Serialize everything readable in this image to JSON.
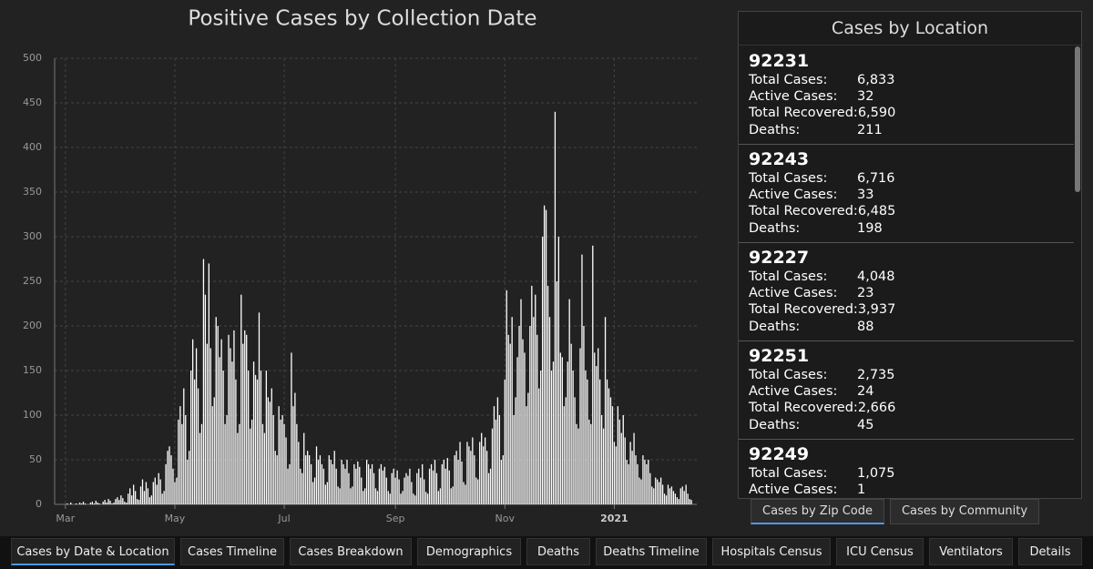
{
  "chart_data": {
    "type": "bar",
    "title": "Positive Cases by Collection Date",
    "color": "#ffffff",
    "grid": true,
    "xlim": [
      -6,
      352
    ],
    "xticks": [
      {
        "value": 0,
        "label": "Mar"
      },
      {
        "value": 61,
        "label": "May"
      },
      {
        "value": 122,
        "label": "Jul"
      },
      {
        "value": 184,
        "label": "Sep"
      },
      {
        "value": 245,
        "label": "Nov"
      },
      {
        "value": 306,
        "label": "2021"
      }
    ],
    "ylim": [
      0,
      500
    ],
    "yticks": [
      0,
      50,
      100,
      150,
      200,
      250,
      300,
      350,
      400,
      450,
      500
    ],
    "values": [
      0,
      1,
      0,
      2,
      0,
      0,
      1,
      0,
      2,
      1,
      3,
      1,
      0,
      0,
      2,
      3,
      1,
      4,
      2,
      1,
      0,
      3,
      5,
      2,
      6,
      4,
      1,
      2,
      6,
      8,
      5,
      10,
      7,
      3,
      2,
      12,
      18,
      10,
      22,
      15,
      6,
      5,
      20,
      28,
      15,
      25,
      18,
      8,
      10,
      25,
      30,
      22,
      35,
      28,
      12,
      15,
      45,
      60,
      65,
      55,
      40,
      25,
      30,
      95,
      110,
      90,
      130,
      100,
      50,
      60,
      150,
      185,
      140,
      175,
      130,
      80,
      90,
      275,
      235,
      180,
      270,
      175,
      110,
      120,
      210,
      200,
      165,
      185,
      150,
      90,
      100,
      190,
      175,
      160,
      195,
      140,
      80,
      90,
      235,
      180,
      195,
      190,
      150,
      85,
      95,
      160,
      145,
      140,
      215,
      150,
      90,
      80,
      150,
      120,
      115,
      130,
      100,
      60,
      55,
      110,
      95,
      100,
      90,
      75,
      40,
      45,
      170,
      110,
      125,
      90,
      70,
      40,
      35,
      80,
      55,
      60,
      55,
      45,
      25,
      30,
      65,
      50,
      55,
      45,
      40,
      22,
      25,
      55,
      50,
      45,
      60,
      40,
      20,
      18,
      50,
      45,
      40,
      50,
      35,
      18,
      20,
      45,
      40,
      48,
      42,
      30,
      15,
      18,
      50,
      45,
      40,
      45,
      35,
      18,
      15,
      40,
      45,
      38,
      42,
      30,
      15,
      12,
      35,
      40,
      30,
      38,
      28,
      12,
      15,
      30,
      35,
      32,
      40,
      25,
      12,
      10,
      35,
      40,
      30,
      45,
      28,
      14,
      12,
      40,
      45,
      38,
      50,
      35,
      15,
      18,
      45,
      50,
      40,
      52,
      38,
      18,
      20,
      55,
      60,
      50,
      70,
      48,
      25,
      22,
      70,
      65,
      60,
      75,
      55,
      30,
      28,
      70,
      80,
      65,
      75,
      60,
      35,
      40,
      85,
      110,
      95,
      120,
      100,
      50,
      55,
      140,
      240,
      190,
      180,
      210,
      100,
      120,
      165,
      200,
      230,
      185,
      170,
      110,
      125,
      200,
      245,
      210,
      235,
      190,
      130,
      150,
      300,
      335,
      330,
      245,
      210,
      150,
      160,
      440,
      250,
      300,
      170,
      165,
      110,
      120,
      160,
      230,
      180,
      150,
      120,
      90,
      85,
      175,
      280,
      200,
      150,
      140,
      95,
      90,
      290,
      170,
      155,
      175,
      140,
      100,
      85,
      210,
      140,
      130,
      120,
      110,
      70,
      65,
      110,
      95,
      80,
      100,
      75,
      50,
      45,
      70,
      60,
      80,
      55,
      45,
      30,
      28,
      55,
      50,
      45,
      50,
      35,
      20,
      18,
      30,
      28,
      25,
      30,
      22,
      12,
      10,
      22,
      18,
      20,
      15,
      12,
      8,
      6,
      18,
      20,
      15,
      22,
      12,
      6,
      5
    ]
  },
  "panel": {
    "title": "Cases by Location",
    "locations": [
      {
        "zip": "92231",
        "rows": [
          [
            "Total Cases:",
            "6,833"
          ],
          [
            "Active Cases:",
            "32"
          ],
          [
            "Total Recovered:",
            "6,590"
          ],
          [
            "Deaths:",
            "211"
          ]
        ]
      },
      {
        "zip": "92243",
        "rows": [
          [
            "Total Cases:",
            "6,716"
          ],
          [
            "Active Cases:",
            "33"
          ],
          [
            "Total Recovered:",
            "6,485"
          ],
          [
            "Deaths:",
            "198"
          ]
        ]
      },
      {
        "zip": "92227",
        "rows": [
          [
            "Total Cases:",
            "4,048"
          ],
          [
            "Active Cases:",
            "23"
          ],
          [
            "Total Recovered:",
            "3,937"
          ],
          [
            "Deaths:",
            "88"
          ]
        ]
      },
      {
        "zip": "92251",
        "rows": [
          [
            "Total Cases:",
            "2,735"
          ],
          [
            "Active Cases:",
            "24"
          ],
          [
            "Total Recovered:",
            "2,666"
          ],
          [
            "Deaths:",
            "45"
          ]
        ]
      },
      {
        "zip": "92249",
        "rows": [
          [
            "Total Cases:",
            "1,075"
          ],
          [
            "Active Cases:",
            "1"
          ]
        ]
      }
    ],
    "tabs": [
      "Cases by Zip Code",
      "Cases by Community"
    ]
  },
  "nav": {
    "tabs": [
      "Cases by Date & Location",
      "Cases Timeline",
      "Cases Breakdown",
      "Demographics",
      "Deaths",
      "Deaths Timeline",
      "Hospitals Census",
      "ICU Census",
      "Ventilators",
      "Details"
    ]
  }
}
